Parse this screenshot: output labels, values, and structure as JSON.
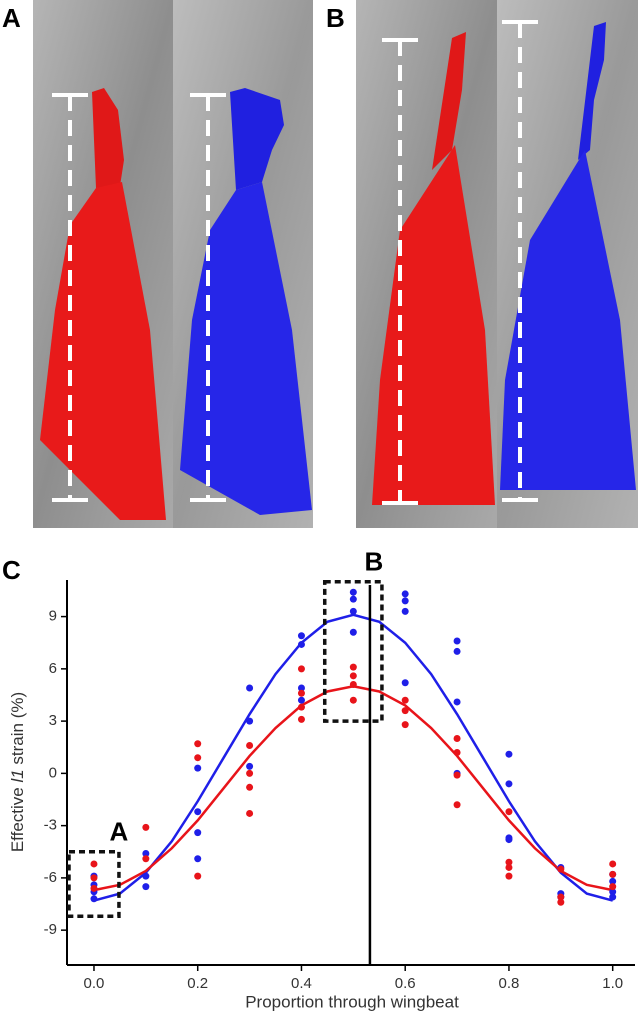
{
  "panel_labels": [
    "A",
    "B",
    "C"
  ],
  "chart_data": {
    "type": "scatter",
    "xlabel": "Proportion through wingbeat",
    "ylabel": [
      "Effective ",
      "l1",
      " strain (%)"
    ],
    "xlim": [
      -0.052,
      1.043
    ],
    "ylim": [
      -11,
      11.1
    ],
    "xticks": [
      {
        "value": 0,
        "label": "0.0"
      },
      {
        "value": 0.2,
        "label": "0.2"
      },
      {
        "value": 0.4,
        "label": "0.4"
      },
      {
        "value": 0.6,
        "label": "0.6"
      },
      {
        "value": 0.8,
        "label": "0.8"
      },
      {
        "value": 1,
        "label": "1.0"
      }
    ],
    "yticks": [
      -9,
      -6,
      -3,
      0,
      3,
      6,
      9
    ],
    "vline": 0.532,
    "boxes": [
      {
        "label": "A",
        "xrange": [
          -0.025,
          0.025
        ],
        "yrange": [
          -8.2,
          -4.5
        ]
      },
      {
        "label": "B",
        "xrange": [
          0.468,
          0.532
        ],
        "yrange": [
          3.0,
          11.0
        ]
      }
    ],
    "series": [
      {
        "color": "#1f1fe8",
        "x": [
          0,
          0,
          0,
          0,
          0.1,
          0.1,
          0.1,
          0.2,
          0.2,
          0.2,
          0.2,
          0.3,
          0.3,
          0.3,
          0.4,
          0.4,
          0.4,
          0.4,
          0.5,
          0.5,
          0.5,
          0.5,
          0.6,
          0.6,
          0.6,
          0.6,
          0.7,
          0.7,
          0.7,
          0.7,
          0.8,
          0.8,
          0.8,
          0.8,
          0.9,
          0.9,
          0.9,
          1,
          1,
          1,
          1
        ],
        "values": [
          -5.9,
          -6.4,
          -6.8,
          -7.2,
          -4.6,
          -5.9,
          -6.5,
          0.3,
          -2.2,
          -3.4,
          -4.9,
          4.9,
          3.0,
          0.4,
          7.9,
          7.4,
          4.9,
          4.2,
          10.4,
          10.0,
          9.3,
          8.1,
          10.3,
          9.9,
          9.3,
          5.2,
          7.6,
          7.0,
          4.1,
          0.0,
          1.1,
          -0.6,
          -3.7,
          -3.8,
          -5.4,
          -6.9,
          -7.1,
          -5.8,
          -6.2,
          -6.8,
          -7.1
        ],
        "fit": {
          "x": [
            0,
            0.05,
            0.1,
            0.15,
            0.2,
            0.25,
            0.3,
            0.35,
            0.4,
            0.45,
            0.5,
            0.55,
            0.6,
            0.65,
            0.7,
            0.75,
            0.8,
            0.85,
            0.9,
            0.95,
            1
          ],
          "values": [
            -7.3,
            -6.9,
            -5.7,
            -3.9,
            -1.6,
            0.9,
            3.4,
            5.7,
            7.5,
            8.7,
            9.1,
            8.7,
            7.5,
            5.7,
            3.4,
            0.9,
            -1.6,
            -3.9,
            -5.7,
            -6.9,
            -7.3
          ]
        }
      },
      {
        "color": "#e8141a",
        "x": [
          0,
          0,
          0,
          0.1,
          0.1,
          0.2,
          0.2,
          0.2,
          0.3,
          0.3,
          0.3,
          0.3,
          0.4,
          0.4,
          0.4,
          0.4,
          0.5,
          0.5,
          0.5,
          0.5,
          0.6,
          0.6,
          0.6,
          0.7,
          0.7,
          0.7,
          0.7,
          0.8,
          0.8,
          0.8,
          0.8,
          0.9,
          0.9,
          0.9,
          1,
          1,
          1
        ],
        "values": [
          -5.2,
          -6.0,
          -6.6,
          -3.1,
          -4.9,
          1.7,
          0.9,
          -5.9,
          1.6,
          0.0,
          -0.8,
          -2.3,
          6.0,
          4.6,
          3.8,
          3.1,
          6.1,
          5.6,
          5.1,
          4.2,
          4.2,
          3.6,
          2.8,
          2.0,
          1.2,
          -0.1,
          -1.8,
          -2.2,
          -5.1,
          -5.4,
          -5.9,
          -5.5,
          -7.1,
          -7.4,
          -5.2,
          -5.8,
          -6.5
        ],
        "fit": {
          "x": [
            0,
            0.05,
            0.1,
            0.15,
            0.2,
            0.25,
            0.3,
            0.35,
            0.4,
            0.45,
            0.5,
            0.55,
            0.6,
            0.65,
            0.7,
            0.75,
            0.8,
            0.85,
            0.9,
            0.95,
            1
          ],
          "values": [
            -6.7,
            -6.4,
            -5.6,
            -4.3,
            -2.7,
            -0.85,
            1.0,
            2.6,
            3.9,
            4.7,
            5.0,
            4.7,
            3.9,
            2.6,
            1.0,
            -0.85,
            -2.7,
            -4.3,
            -5.6,
            -6.4,
            -6.7
          ]
        }
      }
    ]
  }
}
